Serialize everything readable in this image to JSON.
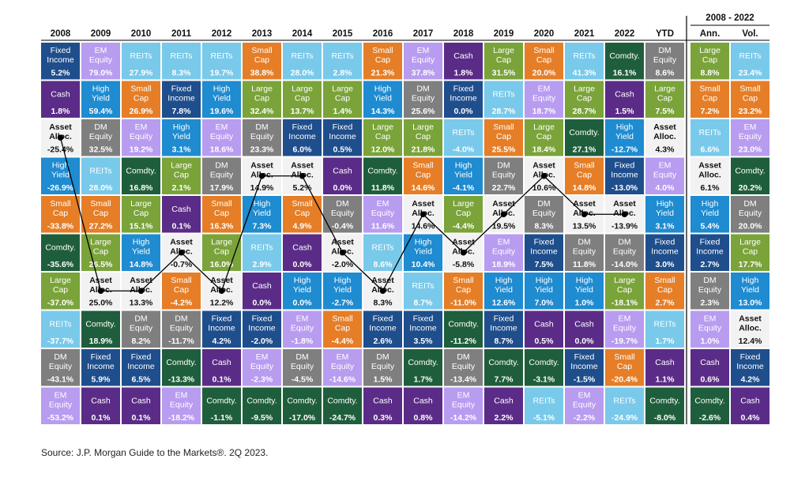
{
  "chart_data": {
    "type": "table",
    "title": "",
    "columns": [
      "2008",
      "2009",
      "2010",
      "2011",
      "2012",
      "2013",
      "2014",
      "2015",
      "2016",
      "2017",
      "2018",
      "2019",
      "2020",
      "2021",
      "2022",
      "YTD",
      "Ann.",
      "Vol."
    ],
    "group_header": {
      "label": "2008 - 2022",
      "columns": [
        "Ann.",
        "Vol."
      ]
    },
    "asset_colors": {
      "Fixed Income": "#1f4e8c",
      "EM Equity": "#b89cf0",
      "REITs": "#79c9ea",
      "Small Cap": "#e57e27",
      "Cash": "#5b2c87",
      "Large Cap": "#7aa33a",
      "High Yield": "#1f8bd0",
      "DM Equity": "#7f7f7f",
      "Asset Alloc.": "#f2f2f2",
      "Comdty.": "#1f5e3c"
    },
    "dark_text_assets": [
      "Asset Alloc."
    ],
    "grid": [
      [
        [
          "Fixed Income",
          "5.2%"
        ],
        [
          "EM Equity",
          "79.0%"
        ],
        [
          "REITs",
          "27.9%"
        ],
        [
          "REITs",
          "8.3%"
        ],
        [
          "REITs",
          "19.7%"
        ],
        [
          "Small Cap",
          "38.8%"
        ],
        [
          "REITs",
          "28.0%"
        ],
        [
          "REITs",
          "2.8%"
        ],
        [
          "Small Cap",
          "21.3%"
        ],
        [
          "EM Equity",
          "37.8%"
        ],
        [
          "Cash",
          "1.8%"
        ],
        [
          "Large Cap",
          "31.5%"
        ],
        [
          "Small Cap",
          "20.0%"
        ],
        [
          "REITs",
          "41.3%"
        ],
        [
          "Comdty.",
          "16.1%"
        ],
        [
          "DM Equity",
          "8.6%"
        ],
        [
          "Large Cap",
          "8.8%"
        ],
        [
          "REITs",
          "23.4%"
        ]
      ],
      [
        [
          "Cash",
          "1.8%"
        ],
        [
          "High Yield",
          "59.4%"
        ],
        [
          "Small Cap",
          "26.9%"
        ],
        [
          "Fixed Income",
          "7.8%"
        ],
        [
          "High Yield",
          "19.6%"
        ],
        [
          "Large Cap",
          "32.4%"
        ],
        [
          "Large Cap",
          "13.7%"
        ],
        [
          "Large Cap",
          "1.4%"
        ],
        [
          "High Yield",
          "14.3%"
        ],
        [
          "DM Equity",
          "25.6%"
        ],
        [
          "Fixed Income",
          "0.0%"
        ],
        [
          "REITs",
          "28.7%"
        ],
        [
          "EM Equity",
          "18.7%"
        ],
        [
          "Large Cap",
          "28.7%"
        ],
        [
          "Cash",
          "1.5%"
        ],
        [
          "Large Cap",
          "7.5%"
        ],
        [
          "Small Cap",
          "7.2%"
        ],
        [
          "Small Cap",
          "23.2%"
        ]
      ],
      [
        [
          "Asset Alloc.",
          "-25.4%"
        ],
        [
          "DM Equity",
          "32.5%"
        ],
        [
          "EM Equity",
          "19.2%"
        ],
        [
          "High Yield",
          "3.1%"
        ],
        [
          "EM Equity",
          "18.6%"
        ],
        [
          "DM Equity",
          "23.3%"
        ],
        [
          "Fixed Income",
          "6.0%"
        ],
        [
          "Fixed Income",
          "0.5%"
        ],
        [
          "Large Cap",
          "12.0%"
        ],
        [
          "Large Cap",
          "21.8%"
        ],
        [
          "REITs",
          "-4.0%"
        ],
        [
          "Small Cap",
          "25.5%"
        ],
        [
          "Large Cap",
          "18.4%"
        ],
        [
          "Comdty.",
          "27.1%"
        ],
        [
          "High Yield",
          "-12.7%"
        ],
        [
          "Asset Alloc.",
          "4.3%"
        ],
        [
          "REITs",
          "6.6%"
        ],
        [
          "EM Equity",
          "23.0%"
        ]
      ],
      [
        [
          "High Yield",
          "-26.9%"
        ],
        [
          "REITs",
          "28.0%"
        ],
        [
          "Comdty.",
          "16.8%"
        ],
        [
          "Large Cap",
          "2.1%"
        ],
        [
          "DM Equity",
          "17.9%"
        ],
        [
          "Asset Alloc.",
          "14.9%"
        ],
        [
          "Asset Alloc.",
          "5.2%"
        ],
        [
          "Cash",
          "0.0%"
        ],
        [
          "Comdty.",
          "11.8%"
        ],
        [
          "Small Cap",
          "14.6%"
        ],
        [
          "High Yield",
          "-4.1%"
        ],
        [
          "DM Equity",
          "22.7%"
        ],
        [
          "Asset Alloc.",
          "10.6%"
        ],
        [
          "Small Cap",
          "14.8%"
        ],
        [
          "Fixed Income",
          "-13.0%"
        ],
        [
          "EM Equity",
          "4.0%"
        ],
        [
          "Asset Alloc.",
          "6.1%"
        ],
        [
          "Comdty.",
          "20.2%"
        ]
      ],
      [
        [
          "Small Cap",
          "-33.8%"
        ],
        [
          "Small Cap",
          "27.2%"
        ],
        [
          "Large Cap",
          "15.1%"
        ],
        [
          "Cash",
          "0.1%"
        ],
        [
          "Small Cap",
          "16.3%"
        ],
        [
          "High Yield",
          "7.3%"
        ],
        [
          "Small Cap",
          "4.9%"
        ],
        [
          "DM Equity",
          "-0.4%"
        ],
        [
          "EM Equity",
          "11.6%"
        ],
        [
          "Asset Alloc.",
          "14.6%"
        ],
        [
          "Large Cap",
          "-4.4%"
        ],
        [
          "Asset Alloc.",
          "19.5%"
        ],
        [
          "DM Equity",
          "8.3%"
        ],
        [
          "Asset Alloc.",
          "13.5%"
        ],
        [
          "Asset Alloc.",
          "-13.9%"
        ],
        [
          "High Yield",
          "3.1%"
        ],
        [
          "High Yield",
          "5.4%"
        ],
        [
          "DM Equity",
          "20.0%"
        ]
      ],
      [
        [
          "Comdty.",
          "-35.6%"
        ],
        [
          "Large Cap",
          "26.5%"
        ],
        [
          "High Yield",
          "14.8%"
        ],
        [
          "Asset Alloc.",
          "-0.7%"
        ],
        [
          "Large Cap",
          "16.0%"
        ],
        [
          "REITs",
          "2.9%"
        ],
        [
          "Cash",
          "0.0%"
        ],
        [
          "Asset Alloc.",
          "-2.0%"
        ],
        [
          "REITs",
          "8.6%"
        ],
        [
          "High Yield",
          "10.4%"
        ],
        [
          "Asset Alloc.",
          "-5.8%"
        ],
        [
          "EM Equity",
          "18.9%"
        ],
        [
          "Fixed Income",
          "7.5%"
        ],
        [
          "DM Equity",
          "11.8%"
        ],
        [
          "DM Equity",
          "-14.0%"
        ],
        [
          "Fixed Income",
          "3.0%"
        ],
        [
          "Fixed Income",
          "2.7%"
        ],
        [
          "Large Cap",
          "17.7%"
        ]
      ],
      [
        [
          "Large Cap",
          "-37.0%"
        ],
        [
          "Asset Alloc.",
          "25.0%"
        ],
        [
          "Asset Alloc.",
          "13.3%"
        ],
        [
          "Small Cap",
          "-4.2%"
        ],
        [
          "Asset Alloc.",
          "12.2%"
        ],
        [
          "Cash",
          "0.0%"
        ],
        [
          "High Yield",
          "0.0%"
        ],
        [
          "High Yield",
          "-2.7%"
        ],
        [
          "Asset Alloc.",
          "8.3%"
        ],
        [
          "REITs",
          "8.7%"
        ],
        [
          "Small Cap",
          "-11.0%"
        ],
        [
          "High Yield",
          "12.6%"
        ],
        [
          "High Yield",
          "7.0%"
        ],
        [
          "High Yield",
          "1.0%"
        ],
        [
          "Large Cap",
          "-18.1%"
        ],
        [
          "Small Cap",
          "2.7%"
        ],
        [
          "DM Equity",
          "2.3%"
        ],
        [
          "High Yield",
          "13.0%"
        ]
      ],
      [
        [
          "REITs",
          "-37.7%"
        ],
        [
          "Comdty.",
          "18.9%"
        ],
        [
          "DM Equity",
          "8.2%"
        ],
        [
          "DM Equity",
          "-11.7%"
        ],
        [
          "Fixed Income",
          "4.2%"
        ],
        [
          "Fixed Income",
          "-2.0%"
        ],
        [
          "EM Equity",
          "-1.8%"
        ],
        [
          "Small Cap",
          "-4.4%"
        ],
        [
          "Fixed Income",
          "2.6%"
        ],
        [
          "Fixed Income",
          "3.5%"
        ],
        [
          "Comdty.",
          "-11.2%"
        ],
        [
          "Fixed Income",
          "8.7%"
        ],
        [
          "Cash",
          "0.5%"
        ],
        [
          "Cash",
          "0.0%"
        ],
        [
          "EM Equity",
          "-19.7%"
        ],
        [
          "REITs",
          "1.7%"
        ],
        [
          "EM Equity",
          "1.0%"
        ],
        [
          "Asset Alloc.",
          "12.4%"
        ]
      ],
      [
        [
          "DM Equity",
          "-43.1%"
        ],
        [
          "Fixed Income",
          "5.9%"
        ],
        [
          "Fixed Income",
          "6.5%"
        ],
        [
          "Comdty.",
          "-13.3%"
        ],
        [
          "Cash",
          "0.1%"
        ],
        [
          "EM Equity",
          "-2.3%"
        ],
        [
          "DM Equity",
          "-4.5%"
        ],
        [
          "EM Equity",
          "-14.6%"
        ],
        [
          "DM Equity",
          "1.5%"
        ],
        [
          "Comdty.",
          "1.7%"
        ],
        [
          "DM Equity",
          "-13.4%"
        ],
        [
          "Comdty.",
          "7.7%"
        ],
        [
          "Comdty.",
          "-3.1%"
        ],
        [
          "Fixed Income",
          "-1.5%"
        ],
        [
          "Small Cap",
          "-20.4%"
        ],
        [
          "Cash",
          "1.1%"
        ],
        [
          "Cash",
          "0.6%"
        ],
        [
          "Fixed Income",
          "4.2%"
        ]
      ],
      [
        [
          "EM Equity",
          "-53.2%"
        ],
        [
          "Cash",
          "0.1%"
        ],
        [
          "Cash",
          "0.1%"
        ],
        [
          "EM Equity",
          "-18.2%"
        ],
        [
          "Comdty.",
          "-1.1%"
        ],
        [
          "Comdty.",
          "-9.5%"
        ],
        [
          "Comdty.",
          "-17.0%"
        ],
        [
          "Comdty.",
          "-24.7%"
        ],
        [
          "Cash",
          "0.3%"
        ],
        [
          "Cash",
          "0.8%"
        ],
        [
          "EM Equity",
          "-14.2%"
        ],
        [
          "Cash",
          "2.2%"
        ],
        [
          "REITs",
          "-5.1%"
        ],
        [
          "EM Equity",
          "-2.2%"
        ],
        [
          "REITs",
          "-24.9%"
        ],
        [
          "Comdty.",
          "-8.0%"
        ],
        [
          "Comdty.",
          "-2.6%"
        ],
        [
          "Cash",
          "0.4%"
        ]
      ]
    ],
    "asset_alloc_line": {
      "series": "Asset Alloc.",
      "columns": [
        "2008",
        "2009",
        "2010",
        "2011",
        "2012",
        "2013",
        "2014",
        "2015",
        "2016",
        "2017",
        "2018",
        "2019",
        "2020",
        "2021",
        "2022"
      ],
      "ranks": [
        3,
        7,
        7,
        6,
        7,
        4,
        4,
        6,
        7,
        5,
        6,
        5,
        4,
        5,
        5
      ]
    }
  },
  "source": "Source: J.P. Morgan Guide to the Markets®. 2Q 2023."
}
